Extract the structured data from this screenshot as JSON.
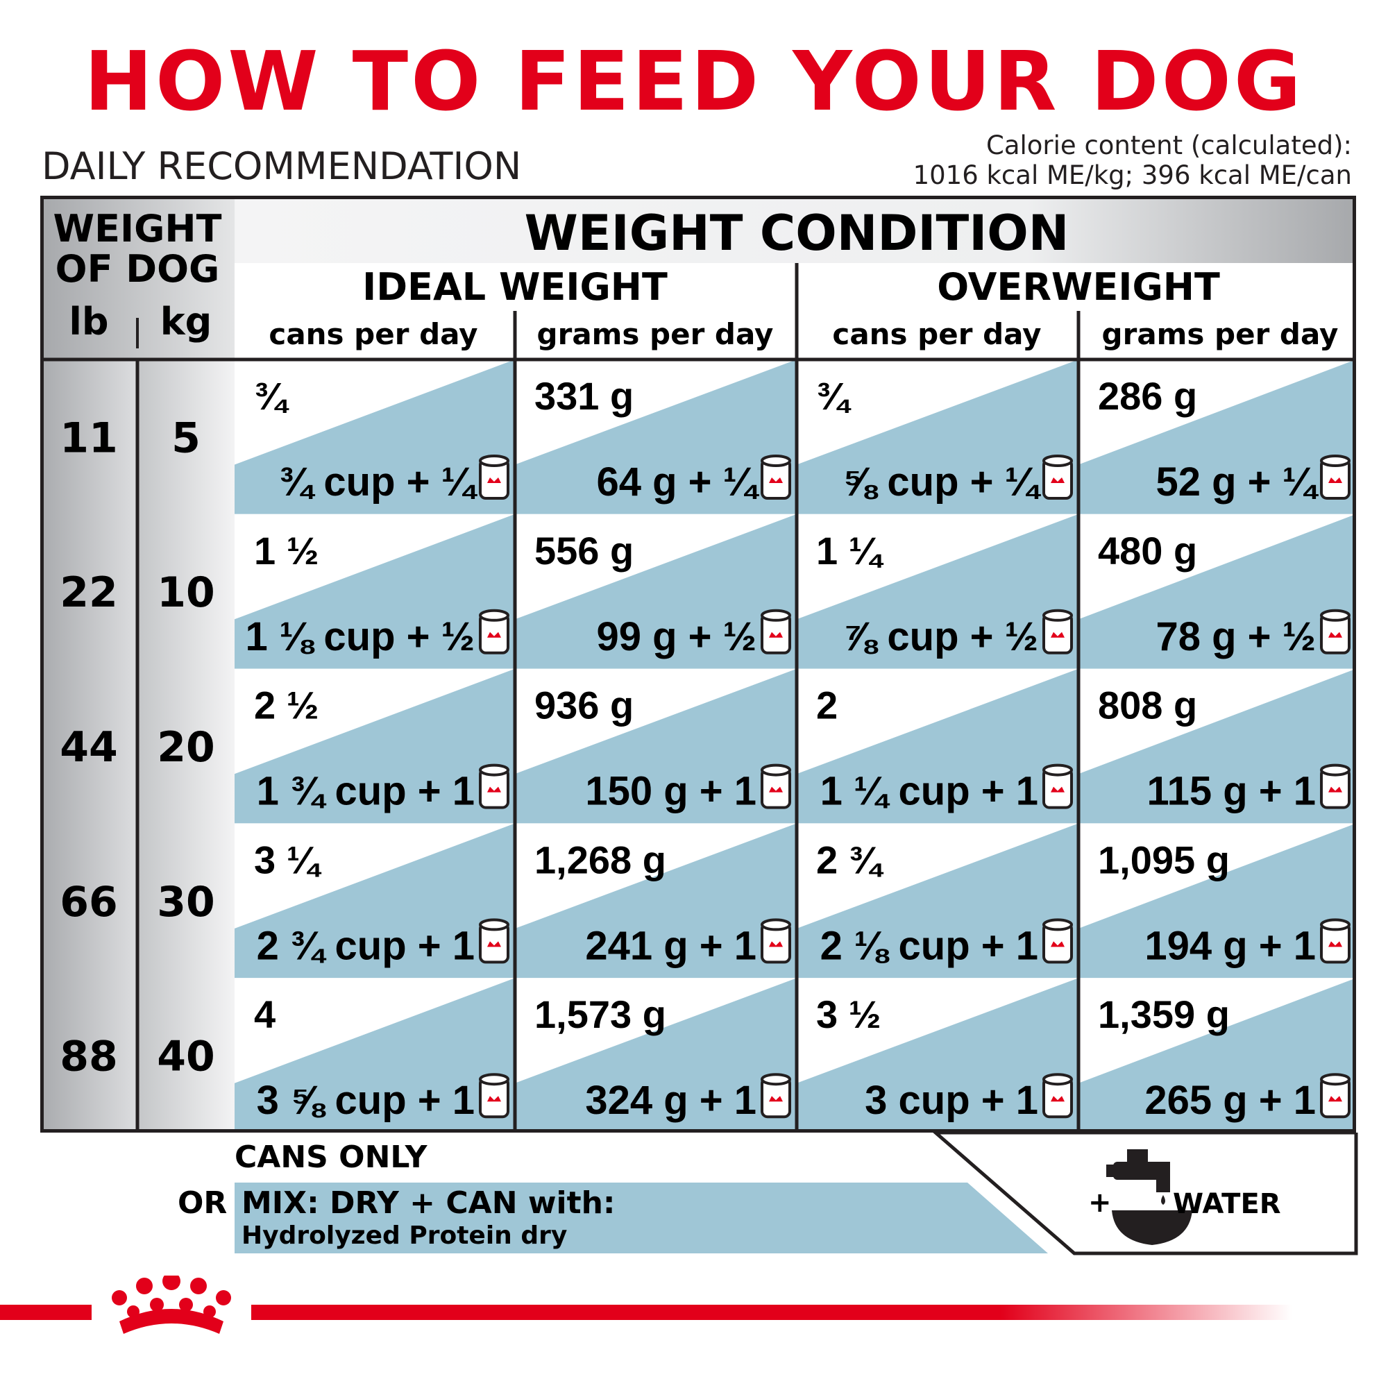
{
  "title": "HOW TO FEED YOUR DOG",
  "subtitle": "DAILY RECOMMENDATION",
  "calorie": {
    "line1": "Calorie content (calculated):",
    "line2": "1016 kcal ME/kg; 396 kcal ME/can"
  },
  "colors": {
    "brand_red": "#e2001a",
    "blue": "#9fc6d6",
    "dark": "#231f20"
  },
  "table": {
    "weight_header_line1": "WEIGHT",
    "weight_header_line2": "OF DOG",
    "lb_label": "lb",
    "kg_label": "kg",
    "condition_header": "WEIGHT CONDITION",
    "ideal_header": "IDEAL WEIGHT",
    "over_header": "OVERWEIGHT",
    "col_cans": "cans per day",
    "col_grams": "grams per day",
    "rows": [
      {
        "lb": "11",
        "kg": "5",
        "cells": [
          {
            "top": "¾",
            "bottom": "¾ cup + ¼"
          },
          {
            "top": "331 g",
            "bottom": "64 g + ¼"
          },
          {
            "top": "¾",
            "bottom": "⅝ cup + ¼"
          },
          {
            "top": "286 g",
            "bottom": "52 g + ¼"
          }
        ]
      },
      {
        "lb": "22",
        "kg": "10",
        "cells": [
          {
            "top": "1 ½",
            "bottom": "1 ⅛ cup + ½"
          },
          {
            "top": "556 g",
            "bottom": "99 g + ½"
          },
          {
            "top": "1 ¼",
            "bottom": "⅞ cup + ½"
          },
          {
            "top": "480 g",
            "bottom": "78 g + ½"
          }
        ]
      },
      {
        "lb": "44",
        "kg": "20",
        "cells": [
          {
            "top": "2 ½",
            "bottom": "1 ¾ cup + 1"
          },
          {
            "top": "936 g",
            "bottom": "150 g + 1"
          },
          {
            "top": "2",
            "bottom": "1 ¼ cup + 1"
          },
          {
            "top": "808 g",
            "bottom": "115 g + 1"
          }
        ]
      },
      {
        "lb": "66",
        "kg": "30",
        "cells": [
          {
            "top": "3 ¼",
            "bottom": "2 ¾ cup + 1"
          },
          {
            "top": "1,268 g",
            "bottom": "241 g + 1"
          },
          {
            "top": "2 ¾",
            "bottom": "2 ⅛ cup + 1"
          },
          {
            "top": "1,095 g",
            "bottom": "194 g + 1"
          }
        ]
      },
      {
        "lb": "88",
        "kg": "40",
        "cells": [
          {
            "top": "4",
            "bottom": "3 ⅝ cup + 1"
          },
          {
            "top": "1,573 g",
            "bottom": "324 g + 1"
          },
          {
            "top": "3 ½",
            "bottom": "3 cup + 1"
          },
          {
            "top": "1,359 g",
            "bottom": "265 g + 1"
          }
        ]
      }
    ]
  },
  "legend": {
    "cans_only": "CANS ONLY",
    "or": "OR",
    "mix_line1": "MIX: DRY + CAN with:",
    "mix_line2": "Hydrolyzed Protein dry",
    "plus": "+",
    "water": "WATER"
  },
  "icons": {
    "can": "dog-food-can-icon",
    "water": "water-tap-bowl-icon",
    "logo": "royal-crown-logo"
  }
}
